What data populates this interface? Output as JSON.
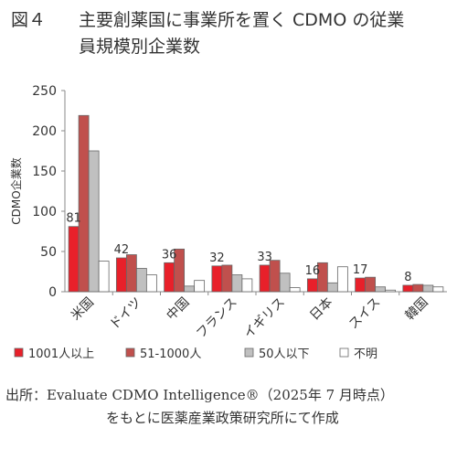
{
  "figure": {
    "number": "図４",
    "title_line1": "主要創薬国に事業所を置く CDMO の従業",
    "title_line2": "員規模別企業数"
  },
  "chart_data": {
    "type": "bar",
    "ylabel": "CDMO企業数",
    "xlabel": "",
    "ylim": [
      0,
      250
    ],
    "yticks": [
      0,
      50,
      100,
      150,
      200,
      250
    ],
    "categories": [
      "米国",
      "ドイツ",
      "中国",
      "フランス",
      "イギリス",
      "日本",
      "スイス",
      "韓国"
    ],
    "series": [
      {
        "name": "1001人以上",
        "color": "#e8202a",
        "values": [
          81,
          42,
          36,
          32,
          33,
          16,
          17,
          8
        ]
      },
      {
        "name": "51-1000人",
        "color": "#c0504d",
        "values": [
          219,
          46,
          53,
          33,
          39,
          36,
          18,
          9
        ]
      },
      {
        "name": "50人以下",
        "color": "#c0c0c0",
        "values": [
          175,
          29,
          7,
          21,
          23,
          11,
          6,
          8
        ]
      },
      {
        "name": "不明",
        "color": "#ffffff",
        "values": [
          38,
          21,
          14,
          16,
          5,
          31,
          2,
          6
        ]
      }
    ],
    "data_labels": [
      "81",
      "42",
      "36",
      "32",
      "33",
      "16",
      "17",
      "8"
    ],
    "grid": false,
    "legend_position": "bottom"
  },
  "source": {
    "line1": "出所：Evaluate CDMO Intelligence®（2025年 7 月時点）",
    "line2": "をもとに医薬産業政策研究所にて作成"
  }
}
